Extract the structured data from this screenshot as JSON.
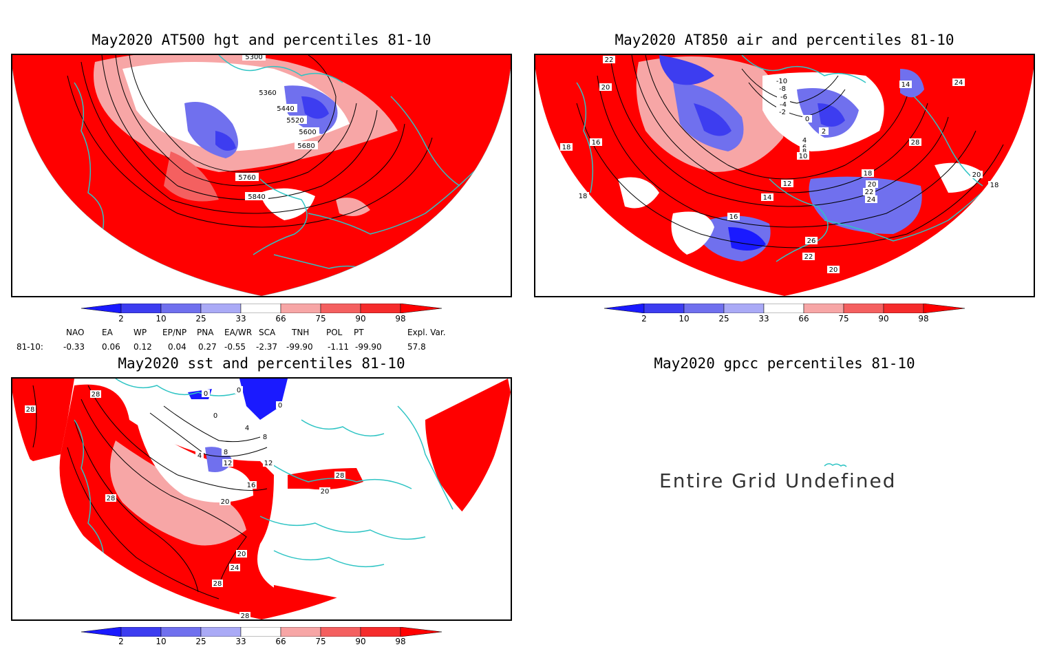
{
  "panels": [
    {
      "title": "May2020 AT500 hgt and percentiles 81-10",
      "contour_labels": [
        "5360",
        "5440",
        "5520",
        "5600",
        "5680",
        "5760",
        "5840",
        "5300"
      ]
    },
    {
      "title": "May2020 AT850 air and percentiles 81-10",
      "contour_labels": [
        "-10",
        "-8",
        "-6",
        "-4",
        "-2",
        "0",
        "2",
        "4",
        "6",
        "8",
        "10",
        "12",
        "14",
        "16",
        "18",
        "20",
        "22",
        "24",
        "26",
        "28",
        "14",
        "24",
        "22",
        "20",
        "18",
        "16",
        "18",
        "20",
        "18",
        "22",
        "20"
      ]
    },
    {
      "title": "May2020 sst and percentiles 81-10",
      "contour_labels": [
        "28",
        "28",
        "0",
        "0",
        "0",
        "0",
        "4",
        "4",
        "8",
        "8",
        "12",
        "12",
        "16",
        "20",
        "20",
        "20",
        "24",
        "28",
        "28",
        "28",
        "28"
      ]
    },
    {
      "title": "May2020 gpcc percentiles 81-10",
      "message": "Entire Grid Undefined"
    }
  ],
  "colorbar": {
    "labels": [
      "2",
      "10",
      "25",
      "33",
      "66",
      "75",
      "90",
      "98"
    ],
    "colors": [
      "#1a1aff",
      "#3d3df0",
      "#7070ee",
      "#aaaaf6",
      "#ffffff",
      "#f7a6a6",
      "#f46060",
      "#f52c2c",
      "#ff0000"
    ]
  },
  "indices": {
    "headers": [
      "NAO",
      "EA",
      "WP",
      "EP/NP",
      "PNA",
      "EA/WR",
      "SCA",
      "TNH",
      "POL",
      "PT",
      "Expl. Var."
    ],
    "row_label": "81-10:",
    "values": [
      "-0.33",
      "0.06",
      "0.12",
      "0.04",
      "0.27",
      "-0.55",
      "-2.37",
      "-99.90",
      "-1.11",
      "-99.90",
      "57.8"
    ]
  },
  "colors": {
    "coast": "#2ec4c4",
    "warm": "#ff0000",
    "cold": "#3333e6",
    "contour": "#000000"
  }
}
